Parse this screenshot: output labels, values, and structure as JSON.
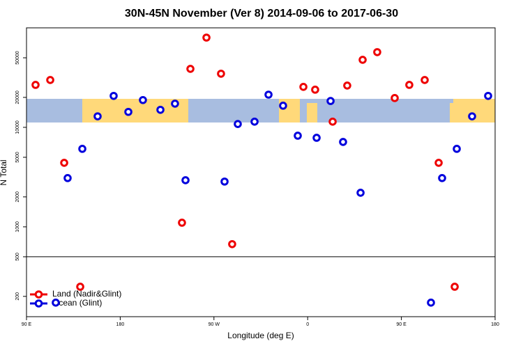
{
  "chart_data": {
    "type": "scatter",
    "title": "30N-45N November (Ver 8)   2014-09-06 to 2017-06-30",
    "x_label": "Longitude (deg E)",
    "y_label": "N Total",
    "log_y": true,
    "legend": "bottomleft",
    "hline": 500,
    "xlim": [
      90,
      540
    ],
    "xticks": [
      {
        "value": 90,
        "label": "90 E"
      },
      {
        "value": 180,
        "label": "180"
      },
      {
        "value": 270,
        "label": "90 W"
      },
      {
        "value": 360,
        "label": "0"
      },
      {
        "value": 450,
        "label": "90 E"
      },
      {
        "value": 540,
        "label": "180"
      }
    ],
    "ylim": [
      125,
      100000
    ],
    "yticks": [
      200,
      500,
      1000,
      2000,
      5000,
      10000,
      20000,
      50000
    ],
    "series": [
      {
        "name": "Land (Nadir&Glint)",
        "color": "#ee0000",
        "x": [
          98.7,
          112.8,
          126.2,
          141.6,
          239.3,
          247.4,
          262.8,
          276.8,
          287.5,
          355.9,
          367.2,
          384.0,
          398.0,
          412.8,
          426.8,
          443.6,
          457.6,
          472.4,
          485.8,
          501.2
        ],
        "values": [
          26700,
          29900,
          4400,
          250,
          1100,
          38700,
          79800,
          34600,
          670,
          25500,
          23900,
          11400,
          26300,
          47700,
          57000,
          19700,
          26700,
          29900,
          4400,
          250
        ]
      },
      {
        "name": "Ocean (Glint)",
        "color": "#0000dd",
        "x": [
          118.1,
          129.5,
          143.6,
          158.3,
          173.7,
          187.8,
          201.8,
          218.6,
          232.6,
          242.7,
          280.2,
          292.9,
          309.0,
          322.4,
          336.4,
          350.5,
          368.6,
          382.0,
          394.0,
          410.8,
          478.4,
          489.1,
          503.2,
          517.9,
          533.3
        ],
        "values": [
          173,
          3090,
          6080,
          12900,
          20700,
          14300,
          18800,
          15000,
          17300,
          2940,
          2850,
          10800,
          11400,
          21300,
          16500,
          8240,
          7850,
          18400,
          7130,
          2200,
          173,
          3090,
          6080,
          12900,
          20700
        ]
      }
    ]
  }
}
